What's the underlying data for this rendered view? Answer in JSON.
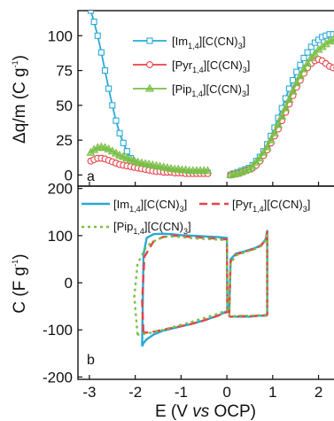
{
  "colors": {
    "Im": "#29a9d6",
    "Pyr": "#e8434a",
    "Pip": "#79bf45"
  },
  "x_axis": {
    "label_pre": "E (V ",
    "label_vs": "vs",
    "label_post": " OCP)",
    "ticks": [
      "-3",
      "-2",
      "-1",
      "0",
      "1",
      "2"
    ],
    "range": [
      -3.25,
      2.55
    ]
  },
  "chart_data": [
    {
      "type": "line",
      "panel_label": "a",
      "ylabel_pre": "Δq/m (C g",
      "ylabel_sup": "-1",
      "ylabel_post": ")",
      "yticks": [
        "0",
        "25",
        "50",
        "75",
        "100"
      ],
      "ylim": [
        -8,
        118
      ],
      "grid": false,
      "legend_placement": "top-center",
      "series": [
        {
          "name": "[Im1,4][C(CN)3]",
          "name_parts": [
            "[Im",
            "1,4",
            "][C(CN)",
            "3",
            "]"
          ],
          "marker": "square",
          "color": "#29a9d6",
          "x": [
            -2.97,
            -2.9,
            -2.82,
            -2.74,
            -2.66,
            -2.58,
            -2.5,
            -2.42,
            -2.34,
            -2.26,
            -2.18,
            -2.1,
            -2.02,
            -1.94,
            -1.86,
            -1.78,
            -1.7,
            -1.62,
            -1.54,
            -1.46,
            -1.38,
            -1.3,
            -1.22,
            -1.14,
            -1.06,
            -0.98,
            -0.9,
            -0.82,
            -0.74,
            -0.66,
            -0.58,
            -0.5,
            -0.42,
            0.08,
            0.16,
            0.24,
            0.32,
            0.4,
            0.48,
            0.56,
            0.64,
            0.72,
            0.8,
            0.88,
            0.96,
            1.04,
            1.12,
            1.2,
            1.28,
            1.36,
            1.44,
            1.52,
            1.6,
            1.68,
            1.76,
            1.84,
            1.92,
            2.0,
            2.08,
            2.16,
            2.24,
            2.32,
            2.4,
            2.48
          ],
          "y": [
            118,
            110,
            100,
            88,
            75,
            62,
            50,
            39,
            30,
            23,
            17,
            12,
            9,
            7,
            6,
            5,
            4,
            3.5,
            3,
            3,
            2.5,
            2.5,
            2,
            2,
            2,
            2,
            1.5,
            1.5,
            1.5,
            1.5,
            1.5,
            1.5,
            1.5,
            0,
            1,
            2,
            3,
            4,
            5,
            7,
            10,
            13,
            17,
            22,
            28,
            34,
            41,
            48,
            55,
            62,
            68,
            74,
            79,
            84,
            88,
            92,
            95,
            97,
            99,
            100,
            101,
            101,
            101,
            101
          ]
        },
        {
          "name": "[Pyr1,4][C(CN)3]",
          "name_parts": [
            "[Pyr",
            "1,4",
            "][C(CN)",
            "3",
            "]"
          ],
          "marker": "circle",
          "color": "#e8434a",
          "x": [
            -2.97,
            -2.9,
            -2.82,
            -2.74,
            -2.66,
            -2.58,
            -2.5,
            -2.42,
            -2.34,
            -2.26,
            -2.18,
            -2.1,
            -2.02,
            -1.94,
            -1.86,
            -1.78,
            -1.7,
            -1.62,
            -1.54,
            -1.46,
            -1.38,
            -1.3,
            -1.22,
            -1.14,
            -1.06,
            -0.98,
            -0.9,
            -0.82,
            -0.74,
            -0.66,
            -0.58,
            -0.5,
            -0.42,
            0.08,
            0.16,
            0.24,
            0.32,
            0.4,
            0.48,
            0.56,
            0.64,
            0.72,
            0.8,
            0.88,
            0.96,
            1.04,
            1.12,
            1.2,
            1.28,
            1.36,
            1.44,
            1.52,
            1.6,
            1.68,
            1.76,
            1.84,
            1.92,
            2.0,
            2.08,
            2.16,
            2.24,
            2.32,
            2.4,
            2.48
          ],
          "y": [
            10,
            11,
            12,
            12,
            11.5,
            10.5,
            9.5,
            8.5,
            7.5,
            7,
            6.5,
            6,
            5.5,
            5,
            4.5,
            4,
            3.5,
            3,
            2.5,
            2.5,
            2,
            2,
            2,
            1.5,
            1.5,
            1.5,
            1,
            1,
            1,
            1,
            1,
            1,
            1,
            0,
            0.5,
            1,
            2,
            3,
            4,
            5,
            7,
            10,
            14,
            18,
            23,
            28,
            33,
            39,
            45,
            51,
            57,
            63,
            68,
            73,
            77,
            80,
            82,
            83,
            82,
            80,
            78,
            77,
            77,
            77
          ]
        },
        {
          "name": "[Pip1,4][C(CN)3]",
          "name_parts": [
            "[Pip",
            "1,4",
            "][C(CN)",
            "3",
            "]"
          ],
          "marker": "triangle",
          "color": "#79bf45",
          "x": [
            -2.97,
            -2.9,
            -2.82,
            -2.74,
            -2.66,
            -2.58,
            -2.5,
            -2.42,
            -2.34,
            -2.26,
            -2.18,
            -2.1,
            -2.02,
            -1.94,
            -1.86,
            -1.78,
            -1.7,
            -1.62,
            -1.54,
            -1.46,
            -1.38,
            -1.3,
            -1.22,
            -1.14,
            -1.06,
            -0.98,
            -0.9,
            -0.82,
            -0.74,
            -0.66,
            -0.58,
            -0.5,
            -0.42,
            0.08,
            0.16,
            0.24,
            0.32,
            0.4,
            0.48,
            0.56,
            0.64,
            0.72,
            0.8,
            0.88,
            0.96,
            1.04,
            1.12,
            1.2,
            1.28,
            1.36,
            1.44,
            1.52,
            1.6,
            1.68,
            1.76,
            1.84,
            1.92,
            2.0,
            2.08,
            2.16,
            2.24,
            2.32,
            2.4,
            2.48
          ],
          "y": [
            16,
            18,
            19.5,
            20,
            19.5,
            18.5,
            17,
            15.5,
            14,
            13,
            12,
            11,
            10,
            9,
            8.5,
            8,
            7.5,
            7,
            6.5,
            6,
            5.5,
            5,
            4.5,
            4,
            4,
            3.5,
            3.5,
            3,
            3,
            3,
            3,
            3,
            3,
            0,
            0.5,
            1,
            2,
            3,
            4,
            6,
            9,
            12,
            16,
            20,
            25,
            30,
            36,
            42,
            48,
            54,
            60,
            66,
            71,
            76,
            80,
            84,
            87,
            90,
            92,
            94,
            96,
            97,
            98,
            99
          ]
        }
      ]
    },
    {
      "type": "line",
      "panel_label": "b",
      "ylabel_pre": "C (F g",
      "ylabel_sup": "-1",
      "ylabel_post": ")",
      "yticks": [
        "-200",
        "-100",
        "0",
        "100",
        "200"
      ],
      "ylim": [
        -205,
        205
      ],
      "grid": false,
      "legend_placement": "top",
      "series": [
        {
          "name": "[Im1,4][C(CN)3]",
          "name_parts": [
            "[Im",
            "1,4",
            "][C(CN)",
            "3",
            "]"
          ],
          "style": "solid",
          "color": "#29a9d6",
          "loops": [
            {
              "x": [
                -1.85,
                -1.82,
                -1.75,
                -1.6,
                -1.4,
                -1.2,
                -1.0,
                -0.8,
                -0.6,
                -0.4,
                -0.2,
                0.0,
                0.01,
                -0.2,
                -0.5,
                -0.8,
                -1.1,
                -1.4,
                -1.6,
                -1.75,
                -1.82,
                -1.85
              ],
              "y": [
                -135,
                60,
                95,
                103,
                104,
                103,
                101,
                100,
                99,
                98,
                97,
                95,
                -60,
                -70,
                -80,
                -88,
                -95,
                -102,
                -110,
                -120,
                -128,
                -135
              ]
            },
            {
              "x": [
                0.05,
                0.08,
                0.2,
                0.4,
                0.6,
                0.75,
                0.85,
                0.88,
                0.88,
                0.86,
                0.7,
                0.5,
                0.3,
                0.1,
                0.05
              ],
              "y": [
                -72,
                50,
                62,
                67,
                73,
                80,
                93,
                110,
                -68,
                -70,
                -70,
                -72,
                -72,
                -72,
                -72
              ]
            }
          ]
        },
        {
          "name": "[Pyr1,4][C(CN)3]",
          "name_parts": [
            "[Pyr",
            "1,4",
            "][C(CN)",
            "3",
            "]"
          ],
          "style": "dashed",
          "color": "#e8434a",
          "loops": [
            {
              "x": [
                -1.82,
                -1.85,
                -1.8,
                -1.6,
                -1.4,
                -1.2,
                -1.0,
                -0.8,
                -0.6,
                -0.4,
                -0.2,
                0.0,
                0.01,
                -0.2,
                -0.5,
                -0.8,
                -1.1,
                -1.4,
                -1.6,
                -1.75,
                -1.82
              ],
              "y": [
                -105,
                -40,
                55,
                88,
                97,
                100,
                99,
                97,
                96,
                95,
                93,
                92,
                -62,
                -70,
                -80,
                -88,
                -94,
                -100,
                -104,
                -106,
                -105
              ]
            },
            {
              "x": [
                0.05,
                0.08,
                0.2,
                0.4,
                0.6,
                0.75,
                0.85,
                0.88,
                0.88,
                0.86,
                0.7,
                0.5,
                0.3,
                0.1,
                0.05
              ],
              "y": [
                -72,
                45,
                60,
                66,
                72,
                79,
                92,
                108,
                -67,
                -69,
                -70,
                -71,
                -71,
                -72,
                -72
              ]
            }
          ]
        },
        {
          "name": "[Pip1,4][C(CN)3]",
          "name_parts": [
            "[Pip",
            "1,4",
            "][C(CN)",
            "3",
            "]"
          ],
          "style": "dotted",
          "color": "#79bf45",
          "loops": [
            {
              "x": [
                -1.95,
                -2.02,
                -1.95,
                -1.75,
                -1.5,
                -1.3,
                -1.1,
                -0.9,
                -0.7,
                -0.5,
                -0.3,
                -0.1,
                0.0,
                0.01,
                -0.2,
                -0.5,
                -0.8,
                -1.1,
                -1.4,
                -1.7,
                -1.9,
                -1.95
              ],
              "y": [
                -110,
                -30,
                40,
                78,
                93,
                98,
                98,
                96,
                94,
                93,
                92,
                91,
                90,
                -58,
                -66,
                -75,
                -84,
                -92,
                -100,
                -107,
                -110,
                -110
              ]
            },
            {
              "x": [
                0.05,
                0.08,
                0.2,
                0.4,
                0.6,
                0.75,
                0.85,
                0.88,
                0.88,
                0.86,
                0.7,
                0.5,
                0.3,
                0.1,
                0.05
              ],
              "y": [
                -70,
                42,
                58,
                65,
                71,
                78,
                90,
                106,
                -66,
                -68,
                -69,
                -70,
                -70,
                -71,
                -70
              ]
            }
          ]
        }
      ]
    }
  ]
}
